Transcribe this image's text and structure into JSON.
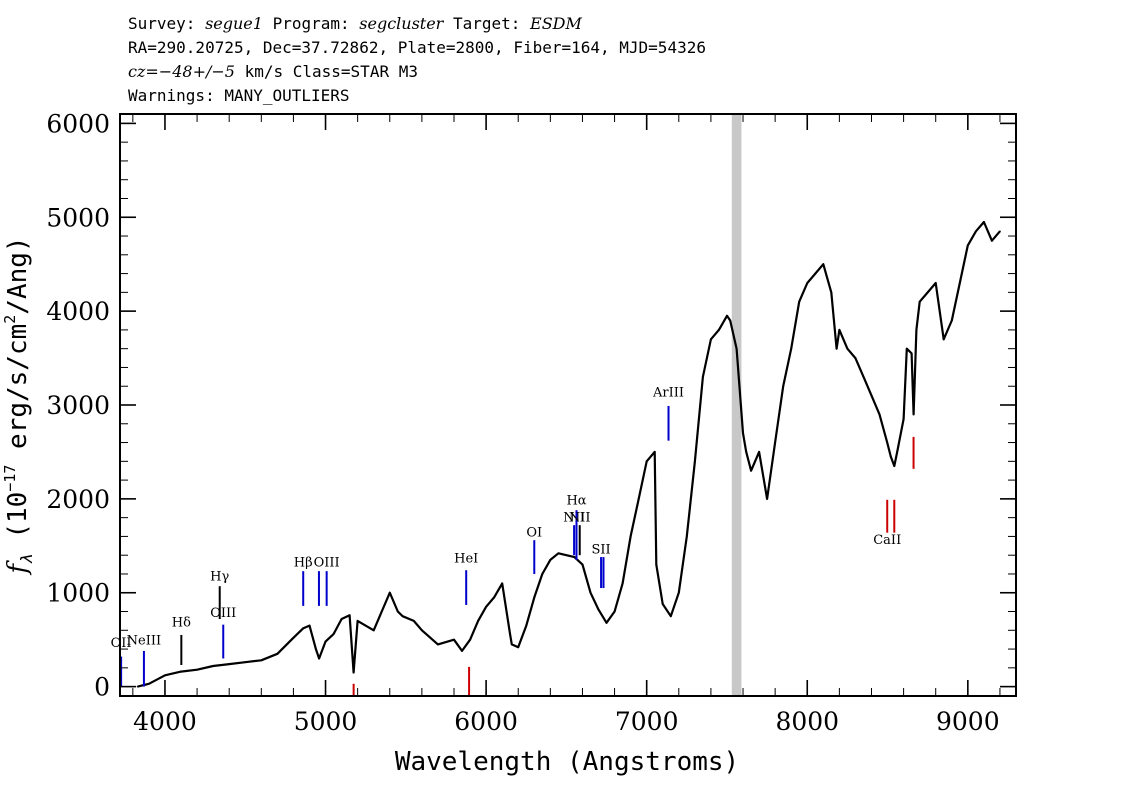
{
  "header": {
    "line1": {
      "survey_label": "Survey: ",
      "survey": "segue1",
      "program_label": " Program: ",
      "program": "segcluster",
      "target_label": " Target: ",
      "target": "ESDM"
    },
    "line2": "RA=290.20725, Dec=37.72862, Plate=2800, Fiber=164, MJD=54326",
    "line3": {
      "cz": "cz=−48+/−5",
      "rest": " km/s Class=STAR M3"
    },
    "line4": "Warnings: MANY_OUTLIERS"
  },
  "chart_data": {
    "type": "line",
    "xlabel": "Wavelength (Angstroms)",
    "ylabel": "f_λ (10^-17 erg/s/cm^2/Ang)",
    "xlim": [
      3720,
      9300
    ],
    "ylim": [
      -100,
      6100
    ],
    "x_ticks": [
      4000,
      5000,
      6000,
      7000,
      8000,
      9000
    ],
    "y_ticks": [
      0,
      1000,
      2000,
      3000,
      4000,
      5000,
      6000
    ],
    "grid": false,
    "masked_band": [
      7530,
      7590
    ],
    "series": [
      {
        "color": "#000000",
        "x": [
          3830,
          3900,
          4000,
          4100,
          4200,
          4300,
          4400,
          4500,
          4600,
          4700,
          4800,
          4860,
          4900,
          4940,
          4960,
          5000,
          5050,
          5100,
          5150,
          5175,
          5200,
          5300,
          5400,
          5450,
          5480,
          5550,
          5600,
          5700,
          5800,
          5850,
          5900,
          5950,
          6000,
          6050,
          6100,
          6150,
          6160,
          6200,
          6250,
          6300,
          6350,
          6400,
          6450,
          6500,
          6550,
          6600,
          6650,
          6700,
          6750,
          6800,
          6850,
          6900,
          6950,
          7000,
          7050,
          7060,
          7100,
          7150,
          7200,
          7250,
          7300,
          7350,
          7400,
          7450,
          7500,
          7520,
          7560,
          7600,
          7620,
          7650,
          7700,
          7750,
          7800,
          7850,
          7900,
          7950,
          8000,
          8050,
          8100,
          8150,
          8183,
          8200,
          8250,
          8300,
          8350,
          8400,
          8450,
          8498,
          8520,
          8542,
          8560,
          8600,
          8620,
          8650,
          8662,
          8680,
          8700,
          8750,
          8800,
          8850,
          8900,
          8950,
          9000,
          9050,
          9100,
          9150,
          9200
        ],
        "y": [
          0,
          30,
          120,
          160,
          180,
          220,
          240,
          260,
          280,
          350,
          520,
          620,
          650,
          400,
          300,
          480,
          560,
          720,
          760,
          150,
          700,
          600,
          1000,
          800,
          750,
          700,
          600,
          450,
          500,
          380,
          500,
          700,
          850,
          950,
          1100,
          550,
          450,
          420,
          650,
          950,
          1200,
          1350,
          1420,
          1400,
          1380,
          1300,
          1000,
          820,
          680,
          800,
          1100,
          1600,
          2000,
          2400,
          2500,
          1300,
          880,
          750,
          1000,
          1600,
          2400,
          3300,
          3700,
          3800,
          3950,
          3900,
          3600,
          2700,
          2500,
          2300,
          2500,
          2000,
          2600,
          3200,
          3600,
          4100,
          4300,
          4400,
          4500,
          4200,
          3600,
          3800,
          3600,
          3500,
          3300,
          3100,
          2900,
          2600,
          2450,
          2350,
          2500,
          2850,
          3600,
          3550,
          2900,
          3800,
          4100,
          4200,
          4300,
          3700,
          3900,
          4300,
          4700,
          4850,
          4950,
          4750,
          4850
        ]
      }
    ],
    "emission_lines": [
      {
        "label": "OII",
        "x": 3727,
        "y_lo": 0,
        "y_hi": 320,
        "color": "#0000cc",
        "label_y": 420
      },
      {
        "label": "NeIII",
        "x": 3869,
        "y_lo": 0,
        "y_hi": 380,
        "color": "#0000cc",
        "label_y": 450
      },
      {
        "label": "Hδ",
        "x": 4102,
        "y_lo": 230,
        "y_hi": 550,
        "color": "#000000",
        "label_y": 640
      },
      {
        "label": "Hγ",
        "x": 4341,
        "y_lo": 720,
        "y_hi": 1070,
        "color": "#000000",
        "label_y": 1130
      },
      {
        "label": "OIII",
        "x": 4363,
        "y_lo": 300,
        "y_hi": 660,
        "color": "#0000cc",
        "label_y": 740
      },
      {
        "label": "Hβ",
        "x": 4861,
        "y_lo": 860,
        "y_hi": 1230,
        "color": "#0000cc",
        "label_y": 1280
      },
      {
        "label": "OIII",
        "x": 4959,
        "y_lo": 860,
        "y_hi": 1230,
        "color": "#0000cc",
        "label_y": -1
      },
      {
        "label": "OIII",
        "x": 5007,
        "y_lo": 860,
        "y_hi": 1230,
        "color": "#0000cc",
        "label_y": 1280
      },
      {
        "label": "HeI",
        "x": 5876,
        "y_lo": 870,
        "y_hi": 1240,
        "color": "#0000cc",
        "label_y": 1320
      },
      {
        "label": "OI",
        "x": 6300,
        "y_lo": 1200,
        "y_hi": 1560,
        "color": "#0000cc",
        "label_y": 1600
      },
      {
        "label": "NII",
        "x": 6548,
        "y_lo": 1400,
        "y_hi": 1720,
        "color": "#0000cc",
        "label_y": 1760
      },
      {
        "label": "Hα",
        "x": 6563,
        "y_lo": 1350,
        "y_hi": 1880,
        "color": "#0000cc",
        "label_y": 1940
      },
      {
        "label": "NII",
        "x": 6583,
        "y_lo": 1400,
        "y_hi": 1720,
        "color": "#000000",
        "label_y": 1760
      },
      {
        "label": "SII",
        "x": 6716,
        "y_lo": 1050,
        "y_hi": 1380,
        "color": "#0000cc",
        "label_y": 1420
      },
      {
        "label": "SII",
        "x": 6731,
        "y_lo": 1050,
        "y_hi": 1380,
        "color": "#0000cc",
        "label_y": -1
      },
      {
        "label": "ArIII",
        "x": 7136,
        "y_lo": 2620,
        "y_hi": 2990,
        "color": "#0000cc",
        "label_y": 3090
      }
    ],
    "absorption_lines": [
      {
        "label": "",
        "x": 5175,
        "y_lo": -100,
        "y_hi": 30,
        "color": "#cc0000"
      },
      {
        "label": "",
        "x": 5894,
        "y_lo": -100,
        "y_hi": 210,
        "color": "#cc0000"
      },
      {
        "label": "CaII",
        "x": 8498,
        "y_lo": 1640,
        "y_hi": 1990,
        "color": "#cc0000",
        "label_y": 1520
      },
      {
        "label": "",
        "x": 8542,
        "y_lo": 1640,
        "y_hi": 1990,
        "color": "#cc0000"
      },
      {
        "label": "",
        "x": 8662,
        "y_lo": 2320,
        "y_hi": 2660,
        "color": "#cc0000"
      }
    ]
  }
}
